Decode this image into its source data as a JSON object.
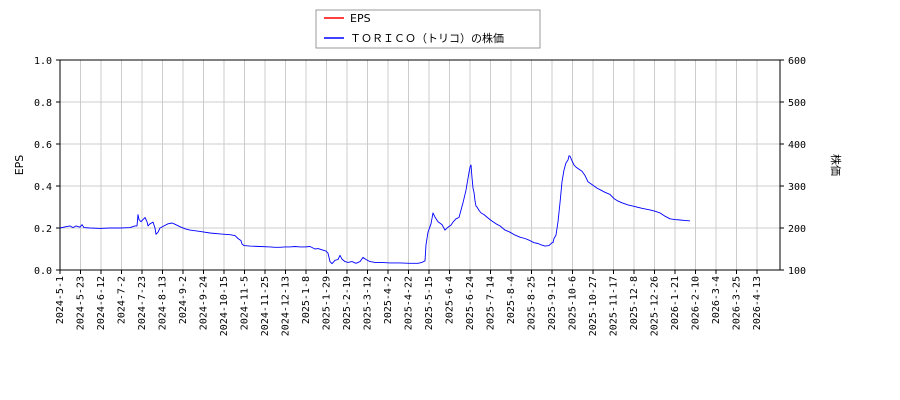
{
  "chart_data": {
    "type": "line",
    "legend": {
      "placement": "top-center",
      "entries": [
        {
          "label": "EPS",
          "color": "#ff0000"
        },
        {
          "label": "ＴＯＲＩＣＯ（トリコ）の株価",
          "color": "#0000ff"
        }
      ]
    },
    "y_left": {
      "label": "EPS",
      "ylim": [
        0,
        1.0
      ],
      "ticks": [
        "0.0",
        "0.2",
        "0.4",
        "0.6",
        "0.8",
        "1.0"
      ]
    },
    "y_right": {
      "label": "株価",
      "ylim": [
        100,
        600
      ],
      "ticks": [
        "100",
        "200",
        "300",
        "400",
        "500",
        "600"
      ]
    },
    "x_ticks": [
      "2024-5-1",
      "2024-5-23",
      "2024-6-12",
      "2024-7-2",
      "2024-7-23",
      "2024-8-13",
      "2024-9-2",
      "2024-9-24",
      "2024-10-15",
      "2024-11-5",
      "2024-11-25",
      "2024-12-13",
      "2025-1-8",
      "2025-1-29",
      "2025-2-19",
      "2025-3-12",
      "2025-4-2",
      "2025-4-22",
      "2025-5-15",
      "2025-6-4",
      "2025-6-24",
      "2025-7-14",
      "2025-8-4",
      "2025-8-25",
      "2025-9-12",
      "2025-10-6",
      "2025-10-27",
      "2025-11-17",
      "2025-12-8",
      "2025-12-26",
      "2026-1-21",
      "2026-2-10",
      "2026-3-4",
      "2026-3-25",
      "2026-4-13"
    ],
    "grid": true,
    "series": [
      {
        "name": "ＴＯＲＩＣＯ（トリコ）の株価",
        "axis": "right",
        "color": "#0000ff",
        "values": [
          [
            0,
            200
          ],
          [
            6,
            203
          ],
          [
            10,
            205
          ],
          [
            13,
            201
          ],
          [
            16,
            205
          ],
          [
            20,
            202
          ],
          [
            22,
            208
          ],
          [
            24,
            201
          ],
          [
            30,
            200
          ],
          [
            40,
            199
          ],
          [
            50,
            200
          ],
          [
            60,
            200
          ],
          [
            70,
            201
          ],
          [
            75,
            205
          ],
          [
            77,
            205
          ],
          [
            78,
            232
          ],
          [
            79,
            220
          ],
          [
            81,
            215
          ],
          [
            83,
            220
          ],
          [
            85,
            225
          ],
          [
            87,
            215
          ],
          [
            88,
            205
          ],
          [
            90,
            210
          ],
          [
            93,
            214
          ],
          [
            95,
            200
          ],
          [
            96,
            185
          ],
          [
            98,
            190
          ],
          [
            100,
            200
          ],
          [
            104,
            205
          ],
          [
            108,
            210
          ],
          [
            112,
            212
          ],
          [
            114,
            210
          ],
          [
            120,
            203
          ],
          [
            125,
            198
          ],
          [
            130,
            195
          ],
          [
            140,
            192
          ],
          [
            150,
            188
          ],
          [
            160,
            186
          ],
          [
            170,
            184
          ],
          [
            175,
            182
          ],
          [
            178,
            175
          ],
          [
            181,
            170
          ],
          [
            182,
            162
          ],
          [
            184,
            158
          ],
          [
            190,
            157
          ],
          [
            200,
            156
          ],
          [
            210,
            155
          ],
          [
            215,
            154
          ],
          [
            220,
            154
          ],
          [
            225,
            155
          ],
          [
            230,
            155
          ],
          [
            235,
            156
          ],
          [
            240,
            155
          ],
          [
            245,
            155
          ],
          [
            250,
            156
          ],
          [
            255,
            150
          ],
          [
            258,
            151
          ],
          [
            262,
            148
          ],
          [
            266,
            145
          ],
          [
            268,
            140
          ],
          [
            269,
            130
          ],
          [
            270,
            120
          ],
          [
            272,
            115
          ],
          [
            275,
            123
          ],
          [
            278,
            125
          ],
          [
            280,
            135
          ],
          [
            282,
            126
          ],
          [
            285,
            120
          ],
          [
            288,
            118
          ],
          [
            292,
            120
          ],
          [
            296,
            116
          ],
          [
            300,
            120
          ],
          [
            303,
            130
          ],
          [
            306,
            125
          ],
          [
            310,
            120
          ],
          [
            315,
            118
          ],
          [
            320,
            118
          ],
          [
            330,
            117
          ],
          [
            340,
            117
          ],
          [
            350,
            116
          ],
          [
            358,
            116
          ],
          [
            362,
            118
          ],
          [
            365,
            122
          ],
          [
            366,
            160
          ],
          [
            368,
            190
          ],
          [
            371,
            210
          ],
          [
            373,
            236
          ],
          [
            375,
            226
          ],
          [
            378,
            215
          ],
          [
            382,
            208
          ],
          [
            385,
            195
          ],
          [
            388,
            202
          ],
          [
            391,
            207
          ],
          [
            393,
            214
          ],
          [
            396,
            222
          ],
          [
            399,
            225
          ],
          [
            403,
            260
          ],
          [
            406,
            290
          ],
          [
            407,
            305
          ],
          [
            408,
            318
          ],
          [
            409,
            332
          ],
          [
            410,
            345
          ],
          [
            411,
            350
          ],
          [
            412,
            320
          ],
          [
            413,
            295
          ],
          [
            414,
            285
          ],
          [
            415,
            265
          ],
          [
            416,
            252
          ],
          [
            417,
            250
          ],
          [
            419,
            242
          ],
          [
            421,
            236
          ],
          [
            424,
            232
          ],
          [
            427,
            226
          ],
          [
            430,
            220
          ],
          [
            433,
            215
          ],
          [
            436,
            210
          ],
          [
            440,
            205
          ],
          [
            445,
            195
          ],
          [
            450,
            190
          ],
          [
            455,
            183
          ],
          [
            460,
            178
          ],
          [
            465,
            175
          ],
          [
            470,
            170
          ],
          [
            474,
            165
          ],
          [
            478,
            163
          ],
          [
            481,
            160
          ],
          [
            485,
            157
          ],
          [
            489,
            158
          ],
          [
            492,
            165
          ],
          [
            493,
            165
          ],
          [
            494,
            175
          ],
          [
            496,
            183
          ],
          [
            498,
            215
          ],
          [
            500,
            260
          ],
          [
            502,
            310
          ],
          [
            504,
            338
          ],
          [
            506,
            355
          ],
          [
            508,
            362
          ],
          [
            509,
            372
          ],
          [
            510,
            371
          ],
          [
            512,
            360
          ],
          [
            514,
            350
          ],
          [
            516,
            345
          ],
          [
            519,
            340
          ],
          [
            522,
            335
          ],
          [
            525,
            325
          ],
          [
            528,
            310
          ],
          [
            531,
            305
          ],
          [
            534,
            300
          ],
          [
            537,
            295
          ],
          [
            541,
            290
          ],
          [
            545,
            285
          ],
          [
            550,
            280
          ],
          [
            554,
            270
          ],
          [
            558,
            264
          ],
          [
            562,
            260
          ],
          [
            568,
            255
          ],
          [
            575,
            251
          ],
          [
            582,
            247
          ],
          [
            590,
            243
          ],
          [
            595,
            240
          ],
          [
            600,
            236
          ],
          [
            605,
            228
          ],
          [
            610,
            222
          ],
          [
            615,
            220
          ],
          [
            620,
            219
          ],
          [
            625,
            218
          ],
          [
            630,
            217
          ]
        ]
      }
    ]
  }
}
